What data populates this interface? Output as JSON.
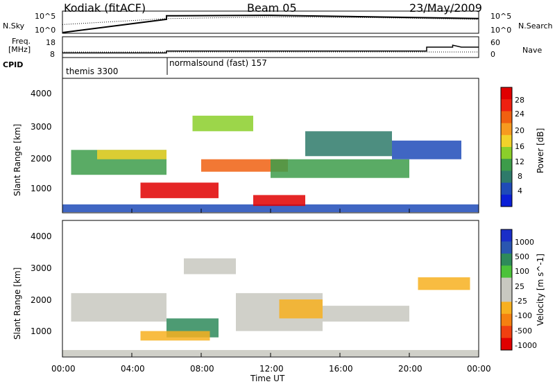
{
  "header": {
    "station": "Kodiak (fitACF)",
    "beam": "Beam 05",
    "date": "23/May/2009"
  },
  "aux_panels": {
    "nsky_label": "N.Sky",
    "nsearch_label": "N.Search",
    "freq_label_1": "Freq.",
    "freq_label_2": "[MHz]",
    "nave_label": "Nave",
    "cpid_label": "CPID",
    "nsky_ticks": [
      "10^5",
      "10^0"
    ],
    "nsearch_ticks": [
      "10^5",
      "10^0"
    ],
    "freq_ticks": [
      "18",
      "8"
    ],
    "nave_ticks": [
      "60",
      "0"
    ],
    "cpid_segments": [
      {
        "label": "themis 3300",
        "start": "00:00",
        "end": "06:00"
      },
      {
        "label": "normalsound (fast) 157",
        "start": "06:00",
        "end": "00:00"
      }
    ]
  },
  "colors": {
    "power_scale": [
      "#0b1fd6",
      "#1f4bb8",
      "#2e7a6a",
      "#3d9c4a",
      "#8bcf2a",
      "#f2d22a",
      "#f79a1f",
      "#f06010",
      "#ee2010",
      "#e00000"
    ],
    "velocity_scale": [
      "#1a2ec8",
      "#2a56b0",
      "#2e8a5a",
      "#4cc23a",
      "#c8c8c0",
      "#c8c8c0",
      "#f7b020",
      "#f58010",
      "#f04010",
      "#e00000"
    ]
  },
  "chart_data": [
    {
      "type": "line",
      "title": "N.Sky / N.Search",
      "x_range": [
        "00:00",
        "24:00"
      ],
      "ylim": [
        1,
        100000
      ],
      "log_y": true,
      "series": [
        {
          "name": "N.Sky",
          "x": [
            "00:00",
            "06:00",
            "06:00",
            "12:00",
            "18:00",
            "24:00"
          ],
          "values": [
            1,
            2000,
            15000,
            20000,
            8000,
            3000
          ]
        },
        {
          "name": "N.Search",
          "x": [
            "00:00",
            "06:00",
            "12:00",
            "18:00",
            "24:00"
          ],
          "values": [
            100,
            3000,
            8000,
            5000,
            2000
          ]
        }
      ]
    },
    {
      "type": "line",
      "title": "Freq. / Nave",
      "x_range": [
        "00:00",
        "24:00"
      ],
      "series": [
        {
          "name": "Freq. [MHz]",
          "x": [
            "00:00",
            "06:00",
            "06:00",
            "21:00",
            "21:00",
            "22:30",
            "22:30",
            "23:00",
            "24:00"
          ],
          "values": [
            10,
            10,
            11,
            11,
            13,
            13,
            14,
            13,
            13
          ],
          "ylim": [
            8,
            18
          ]
        },
        {
          "name": "Nave",
          "x": [
            "00:00",
            "24:00"
          ],
          "values": [
            15,
            15
          ],
          "ylim": [
            0,
            60
          ]
        }
      ]
    },
    {
      "type": "heatmap",
      "title": "Power [dB]",
      "xlabel": "",
      "ylabel": "Slant Range [km]",
      "x_range": [
        "00:00",
        "24:00"
      ],
      "ylim": [
        180,
        4500
      ],
      "y_ticks": [
        1000,
        2000,
        3000,
        4000
      ],
      "colorbar": {
        "label": "Power [dB]",
        "ticks": [
          4,
          8,
          12,
          16,
          20,
          24,
          28
        ],
        "range": [
          0,
          32
        ]
      },
      "regions": [
        {
          "x0": 0.5,
          "x1": 6,
          "y0": 1400,
          "y1": 2200,
          "value": 10
        },
        {
          "x0": 2,
          "x1": 6,
          "y0": 1900,
          "y1": 2200,
          "value": 18
        },
        {
          "x0": 0,
          "x1": 24,
          "y0": 200,
          "y1": 450,
          "value": 6
        },
        {
          "x0": 4.5,
          "x1": 9,
          "y0": 650,
          "y1": 1150,
          "value": 30
        },
        {
          "x0": 8,
          "x1": 13,
          "y0": 1500,
          "y1": 1900,
          "value": 25
        },
        {
          "x0": 11,
          "x1": 14,
          "y0": 400,
          "y1": 750,
          "value": 30
        },
        {
          "x0": 7.5,
          "x1": 11,
          "y0": 2800,
          "y1": 3300,
          "value": 14
        },
        {
          "x0": 12,
          "x1": 20,
          "y0": 1300,
          "y1": 1900,
          "value": 10
        },
        {
          "x0": 19,
          "x1": 23,
          "y0": 1900,
          "y1": 2500,
          "value": 6
        },
        {
          "x0": 14,
          "x1": 19,
          "y0": 2000,
          "y1": 2800,
          "value": 8
        }
      ]
    },
    {
      "type": "heatmap",
      "title": "Velocity [m s^-1]",
      "xlabel": "Time UT",
      "ylabel": "Slant Range [km]",
      "x_range": [
        "00:00",
        "24:00"
      ],
      "x_ticks": [
        "00:00",
        "04:00",
        "08:00",
        "12:00",
        "16:00",
        "20:00",
        "00:00"
      ],
      "ylim": [
        180,
        4500
      ],
      "y_ticks": [
        1000,
        2000,
        3000,
        4000
      ],
      "colorbar": {
        "label": "Velocity [m s^-1]",
        "ticks": [
          1000,
          500,
          100,
          25,
          -25,
          -100,
          -500,
          -1000
        ]
      },
      "regions": [
        {
          "x0": 0.5,
          "x1": 6,
          "y0": 1300,
          "y1": 2200,
          "value": 0
        },
        {
          "x0": 6,
          "x1": 9,
          "y0": 800,
          "y1": 1400,
          "value": 150
        },
        {
          "x0": 7,
          "x1": 10,
          "y0": 2800,
          "y1": 3300,
          "value": 0
        },
        {
          "x0": 10,
          "x1": 15,
          "y0": 1000,
          "y1": 2200,
          "value": 0
        },
        {
          "x0": 12.5,
          "x1": 15,
          "y0": 1400,
          "y1": 2000,
          "value": -150
        },
        {
          "x0": 20.5,
          "x1": 23.5,
          "y0": 2300,
          "y1": 2700,
          "value": -300
        },
        {
          "x0": 15,
          "x1": 20,
          "y0": 1300,
          "y1": 1800,
          "value": 0
        },
        {
          "x0": 0,
          "x1": 24,
          "y0": 200,
          "y1": 400,
          "value": -50
        },
        {
          "x0": 4.5,
          "x1": 8.5,
          "y0": 700,
          "y1": 1000,
          "value": -200
        }
      ]
    }
  ]
}
